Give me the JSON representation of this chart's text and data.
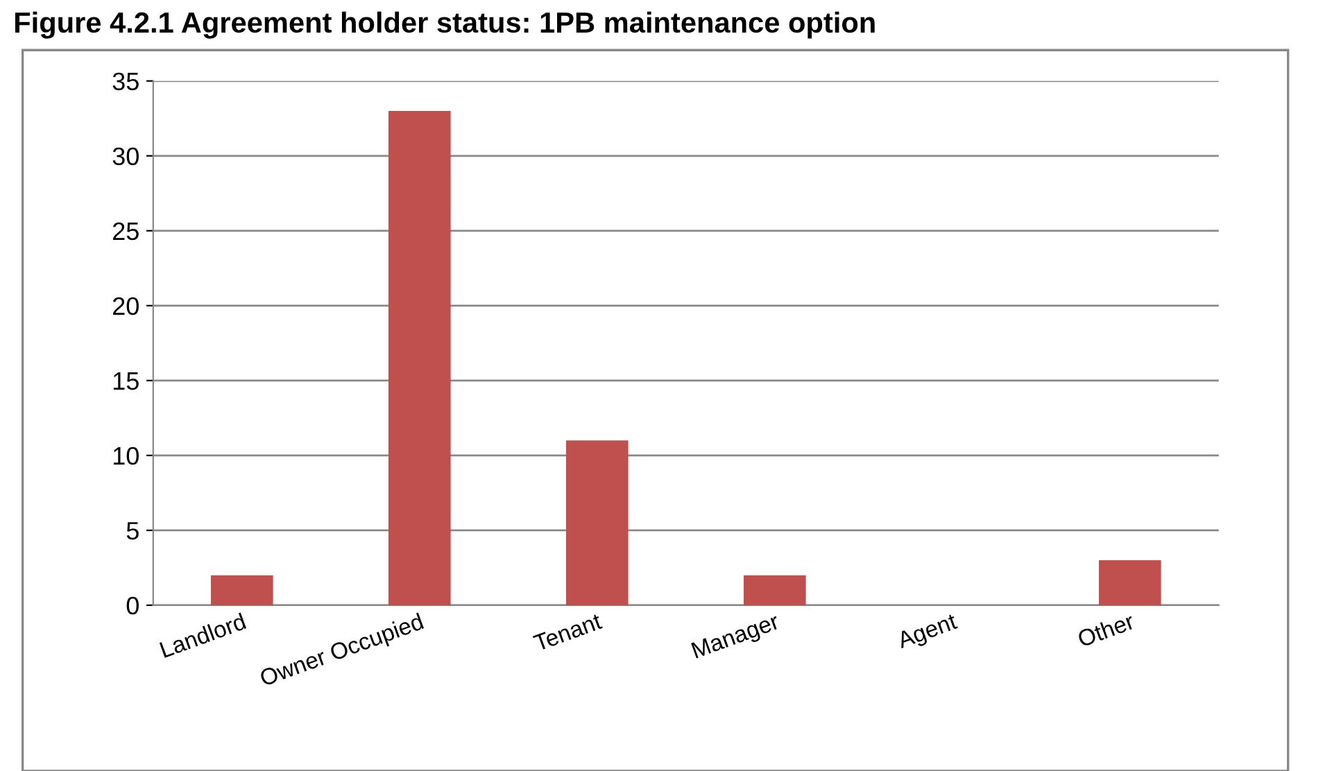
{
  "chart_data": {
    "type": "bar",
    "title": "Figure 4.2.1 Agreement holder status: 1PB maintenance option",
    "categories": [
      "Landlord",
      "Owner Occupied",
      "Tenant",
      "Manager",
      "Agent",
      "Other"
    ],
    "values": [
      2,
      33,
      11,
      2,
      0,
      3
    ],
    "color": "#c0504d",
    "ylim": [
      0,
      35
    ],
    "yticks": [
      0,
      5,
      10,
      15,
      20,
      25,
      30,
      35
    ],
    "grid": "y"
  }
}
